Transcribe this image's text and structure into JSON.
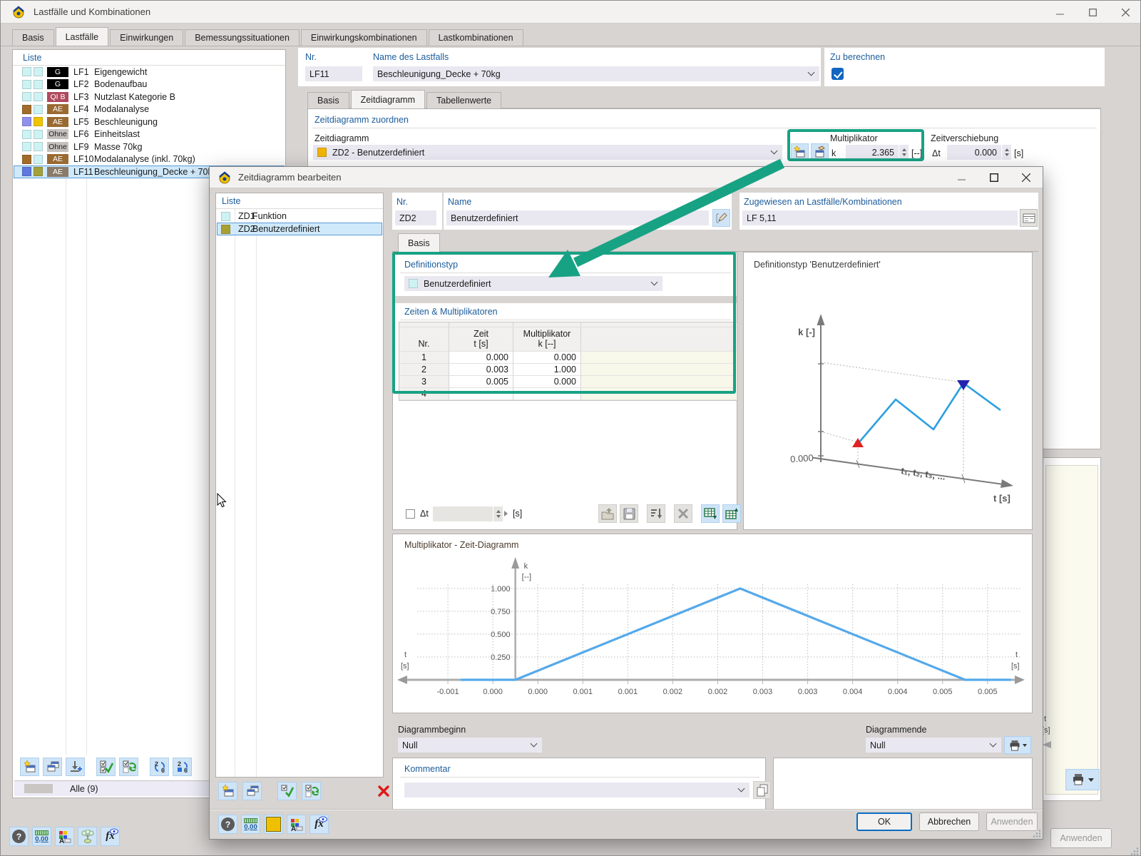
{
  "colors": {
    "accent_green": "#18a284",
    "chart_line": "#55a9ea",
    "preview_line": "#2d9fe0",
    "marker_red": "#e02222",
    "marker_navy": "#2323b0",
    "checkbox_blue": "#1266c0"
  },
  "icons": {
    "help": "?",
    "units": "0,00",
    "fx": "fx",
    "renumber_top": "2",
    "renumber_bottom": "6"
  },
  "main": {
    "title": "Lastfälle und Kombinationen",
    "tabs": [
      {
        "label": "Basis"
      },
      {
        "label": "Lastfälle"
      },
      {
        "label": "Einwirkungen"
      },
      {
        "label": "Bemessungssituationen"
      },
      {
        "label": "Einwirkungskombinationen"
      },
      {
        "label": "Lastkombinationen"
      }
    ],
    "list": {
      "header": "Liste",
      "footer": "Alle (9)",
      "rows": [
        {
          "id": "LF1",
          "name": "Eigengewicht",
          "badge": "G",
          "badge_bg": "#000000",
          "badge_fg": "#ffffff",
          "sw1": "#cdf2f4",
          "sw2": "#cdf2f4"
        },
        {
          "id": "LF2",
          "name": "Bodenaufbau",
          "badge": "G",
          "badge_bg": "#000000",
          "badge_fg": "#ffffff",
          "sw1": "#cdf2f4",
          "sw2": "#cdf2f4"
        },
        {
          "id": "LF3",
          "name": "Nutzlast Kategorie B",
          "badge": "QI B",
          "badge_bg": "#b04a5e",
          "badge_fg": "#ffffff",
          "sw1": "#cdf2f4",
          "sw2": "#cdf2f4"
        },
        {
          "id": "LF4",
          "name": "Modalanalyse",
          "badge": "AE",
          "badge_bg": "#9a6a33",
          "badge_fg": "#ffffff",
          "sw1": "#a26b28",
          "sw2": "#cdf2f4"
        },
        {
          "id": "LF5",
          "name": "Beschleunigung",
          "badge": "AE",
          "badge_bg": "#9a6a33",
          "badge_fg": "#ffffff",
          "sw1": "#9090ee",
          "sw2": "#f0c400"
        },
        {
          "id": "LF6",
          "name": "Einheitslast",
          "badge": "Ohne",
          "badge_bg": "#c3c0bd",
          "badge_fg": "#1f1f1f",
          "sw1": "#cdf2f4",
          "sw2": "#cdf2f4"
        },
        {
          "id": "LF9",
          "name": "Masse 70kg",
          "badge": "Ohne",
          "badge_bg": "#c3c0bd",
          "badge_fg": "#1f1f1f",
          "sw1": "#cdf2f4",
          "sw2": "#cdf2f4"
        },
        {
          "id": "LF10",
          "name": "Modalanalyse (inkl. 70kg)",
          "badge": "AE",
          "badge_bg": "#9a6a33",
          "badge_fg": "#ffffff",
          "sw1": "#a26b28",
          "sw2": "#cdf2f4"
        },
        {
          "id": "LF11",
          "name": "Beschleunigung_Decke + 70kg",
          "badge": "AE",
          "badge_bg": "#8a7a68",
          "badge_fg": "#ffffff",
          "sw1": "#5e78dc",
          "sw2": "#a4a03a",
          "selected": true
        }
      ]
    },
    "nr": {
      "label": "Nr.",
      "value": "LF11"
    },
    "name": {
      "label": "Name des Lastfalls",
      "value": "Beschleunigung_Decke + 70kg"
    },
    "compute_label": "Zu berechnen",
    "subtabs": [
      {
        "label": "Basis"
      },
      {
        "label": "Zeitdiagramm"
      },
      {
        "label": "Tabellenwerte"
      }
    ],
    "assign": {
      "section": "Zeitdiagramm zuordnen",
      "zd_label": "Zeitdiagramm",
      "zd_value": "ZD2 - Benutzerdefiniert",
      "zd_swatch": "#f0b400",
      "mult_label": "Multiplikator",
      "k_label": "k",
      "k_value": "2.365",
      "k_unit": "[--]",
      "shift_label": "Zeitverschiebung",
      "dt_label": "Δt",
      "dt_value": "0.000",
      "dt_unit": "[s]"
    },
    "apply_label": "Anwenden",
    "fragment_t": "t",
    "fragment_s": "[s]"
  },
  "dialog": {
    "title": "Zeitdiagramm bearbeiten",
    "list": {
      "header": "Liste",
      "rows": [
        {
          "id": "ZD1",
          "name": "Funktion",
          "sw": "#cdf2f4"
        },
        {
          "id": "ZD2",
          "name": "Benutzerdefiniert",
          "sw": "#a8a132",
          "selected": true
        }
      ]
    },
    "nr": {
      "label": "Nr.",
      "value": "ZD2"
    },
    "name": {
      "label": "Name",
      "value": "Benutzerdefiniert"
    },
    "assigned": {
      "label": "Zugewiesen an Lastfälle/Kombinationen",
      "value": "LF 5,11"
    },
    "tab": "Basis",
    "deftype": {
      "label": "Definitionstyp",
      "value": "Benutzerdefiniert",
      "swatch": "#cdf2f4"
    },
    "times_section": "Zeiten & Multiplikatoren",
    "table": {
      "col_nr": "Nr.",
      "col_time_l1": "Zeit",
      "col_time_l2": "t [s]",
      "col_mult_l1": "Multiplikator",
      "col_mult_l2": "k [--]",
      "rows": [
        [
          "1",
          "0.000",
          "0.000"
        ],
        [
          "2",
          "0.003",
          "1.000"
        ],
        [
          "3",
          "0.005",
          "0.000"
        ],
        [
          "4",
          "",
          ""
        ]
      ]
    },
    "dt": {
      "label": "Δt",
      "unit": "[s]"
    },
    "preview": {
      "title": "Definitionstyp 'Benutzerdefiniert'",
      "y_axis": "k [-]",
      "zero": "0.000",
      "seq": "t₁, t₂, t₃, ...",
      "x_axis": "t [s]"
    },
    "chart_title": "Multiplikator - Zeit-Diagramm",
    "begin": {
      "label": "Diagrammbeginn",
      "value": "Null"
    },
    "end": {
      "label": "Diagrammende",
      "value": "Null"
    },
    "comment_label": "Kommentar",
    "buttons": {
      "ok": "OK",
      "cancel": "Abbrechen",
      "apply": "Anwenden"
    }
  },
  "chart_data": {
    "type": "line",
    "title": "Multiplikator - Zeit-Diagramm",
    "xlabel": "t [s]",
    "ylabel": "k [--]",
    "xlabel_lines": [
      "t",
      "[s]"
    ],
    "ylabel_lines": [
      "k",
      "[--]"
    ],
    "series": [
      {
        "name": "ZD2 - Benutzerdefiniert",
        "points": [
          [
            -0.0006,
            0
          ],
          [
            0,
            0
          ],
          [
            0.0025,
            1
          ],
          [
            0.005,
            0
          ],
          [
            0.0055,
            0
          ]
        ]
      }
    ],
    "defined_points": {
      "t": [
        0.0,
        0.003,
        0.005
      ],
      "k": [
        0.0,
        1.0,
        0.0
      ]
    },
    "x_ticks": {
      "start": -0.00075,
      "step": 0.0005,
      "labels": [
        "-0.001",
        "0.000",
        "0.000",
        "0.001",
        "0.001",
        "0.002",
        "0.002",
        "0.003",
        "0.003",
        "0.004",
        "0.004",
        "0.005",
        "0.005"
      ]
    },
    "y_ticks": {
      "values": [
        0.25,
        0.5,
        0.75,
        1.0
      ],
      "labels": [
        "0.250",
        "0.500",
        "0.750",
        "1.000"
      ]
    },
    "xlim": [
      -0.00125,
      0.0056
    ],
    "ylim": [
      0,
      1.1
    ],
    "grid": true,
    "legend": false,
    "line_color": "#55a9ea"
  }
}
